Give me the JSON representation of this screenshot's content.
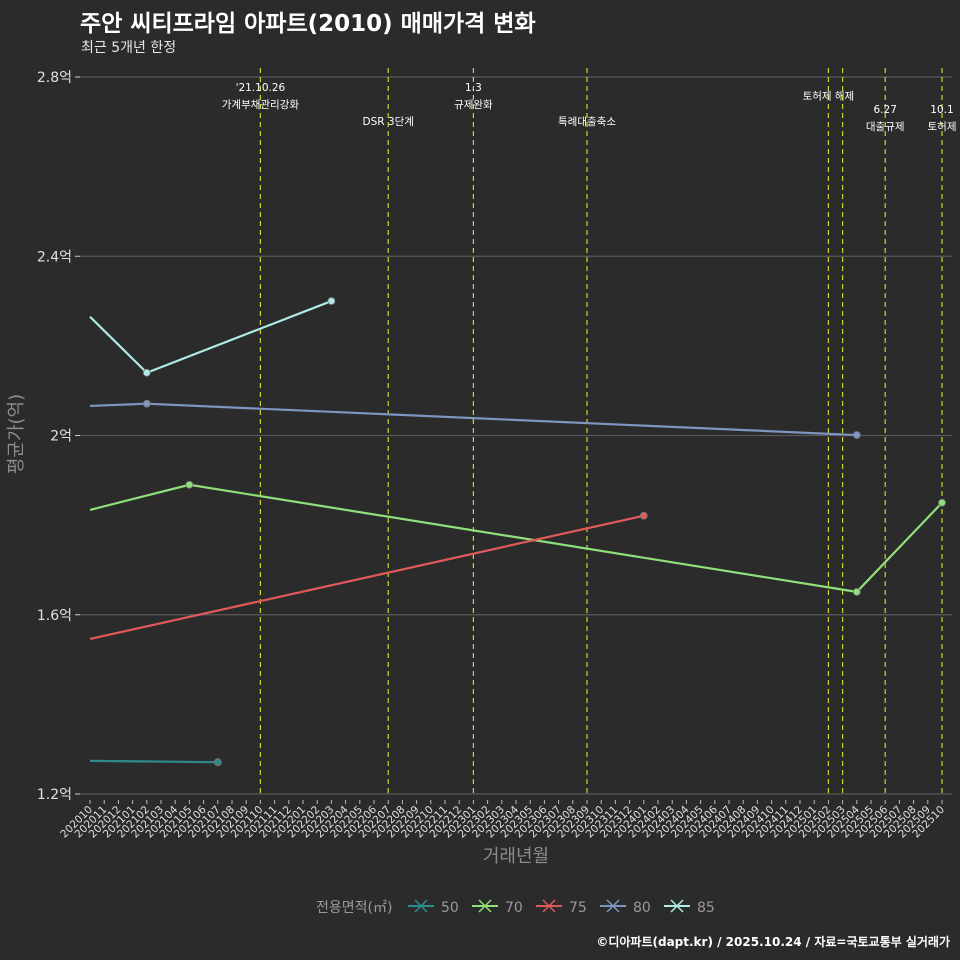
{
  "title": "주안 씨티프라임 아파트(2010) 매매가격 변화",
  "subtitle": "최근 5개년 한정",
  "footer": "©디아파트(dapt.kr) / 2025.10.24 / 자료=국토교통부 실거래가",
  "chart_data": {
    "type": "line",
    "xlabel": "거래년월",
    "ylabel": "평균가(억)",
    "ylim": [
      1.2,
      2.8
    ],
    "yticks": [
      1.2,
      1.6,
      2.0,
      2.4,
      2.8
    ],
    "ytick_labels": [
      "1.2억",
      "1.6억",
      "2억",
      "2.4억",
      "2.8억"
    ],
    "x_months": [
      "202010",
      "202011",
      "202012",
      "202101",
      "202102",
      "202103",
      "202104",
      "202105",
      "202106",
      "202107",
      "202108",
      "202109",
      "202110",
      "202111",
      "202112",
      "202201",
      "202202",
      "202203",
      "202204",
      "202205",
      "202206",
      "202207",
      "202208",
      "202209",
      "202210",
      "202211",
      "202212",
      "202301",
      "202302",
      "202303",
      "202304",
      "202305",
      "202306",
      "202307",
      "202308",
      "202309",
      "202310",
      "202311",
      "202312",
      "202401",
      "202402",
      "202403",
      "202404",
      "202405",
      "202406",
      "202407",
      "202408",
      "202409",
      "202410",
      "202411",
      "202412",
      "202501",
      "202502",
      "202503",
      "202504",
      "202505",
      "202506",
      "202507",
      "202508",
      "202509",
      "202510"
    ],
    "legend_title": "전용면적(㎡)",
    "legend_position": "bottom",
    "series": [
      {
        "name": "50",
        "color": "#2e8b8b",
        "points": [
          [
            "202010",
            1.274
          ],
          [
            "202107",
            1.271
          ]
        ]
      },
      {
        "name": "70",
        "color": "#8fe07a",
        "points": [
          [
            "202010",
            1.834
          ],
          [
            "202105",
            1.89
          ],
          [
            "202504",
            1.651
          ],
          [
            "202510",
            1.85
          ]
        ]
      },
      {
        "name": "75",
        "color": "#e05a5a",
        "points": [
          [
            "202010",
            1.546
          ],
          [
            "202401",
            1.821
          ]
        ]
      },
      {
        "name": "80",
        "color": "#7f95c2",
        "points": [
          [
            "202010",
            2.066
          ],
          [
            "202102",
            2.071
          ],
          [
            "202504",
            2.001
          ]
        ]
      },
      {
        "name": "85",
        "color": "#aeeae6",
        "points": [
          [
            "202010",
            2.265
          ],
          [
            "202102",
            2.14
          ],
          [
            "202203",
            2.3
          ]
        ]
      }
    ],
    "events": [
      {
        "month": "202110",
        "lines": [
          "'21.10.26",
          "가계부채관리강화"
        ],
        "row": 0
      },
      {
        "month": "202207",
        "lines": [
          "DSR 3단계"
        ],
        "row": 2
      },
      {
        "month": "202301",
        "lines": [
          "1.3",
          "규제완화"
        ],
        "row": 0
      },
      {
        "month": "202309",
        "lines": [
          "특례대출축소"
        ],
        "row": 2
      },
      {
        "month": "202502",
        "lines": [
          "토허제 해제"
        ],
        "row": 0.5
      },
      {
        "month": "202503",
        "lines": []
      },
      {
        "month": "202506",
        "lines": [
          "6.27",
          "대출규제"
        ],
        "row": 1.3
      },
      {
        "month": "202510",
        "lines": [
          "10.1",
          "토허제"
        ],
        "row": 1.3
      }
    ],
    "event_line_color": "#d4d42a"
  }
}
